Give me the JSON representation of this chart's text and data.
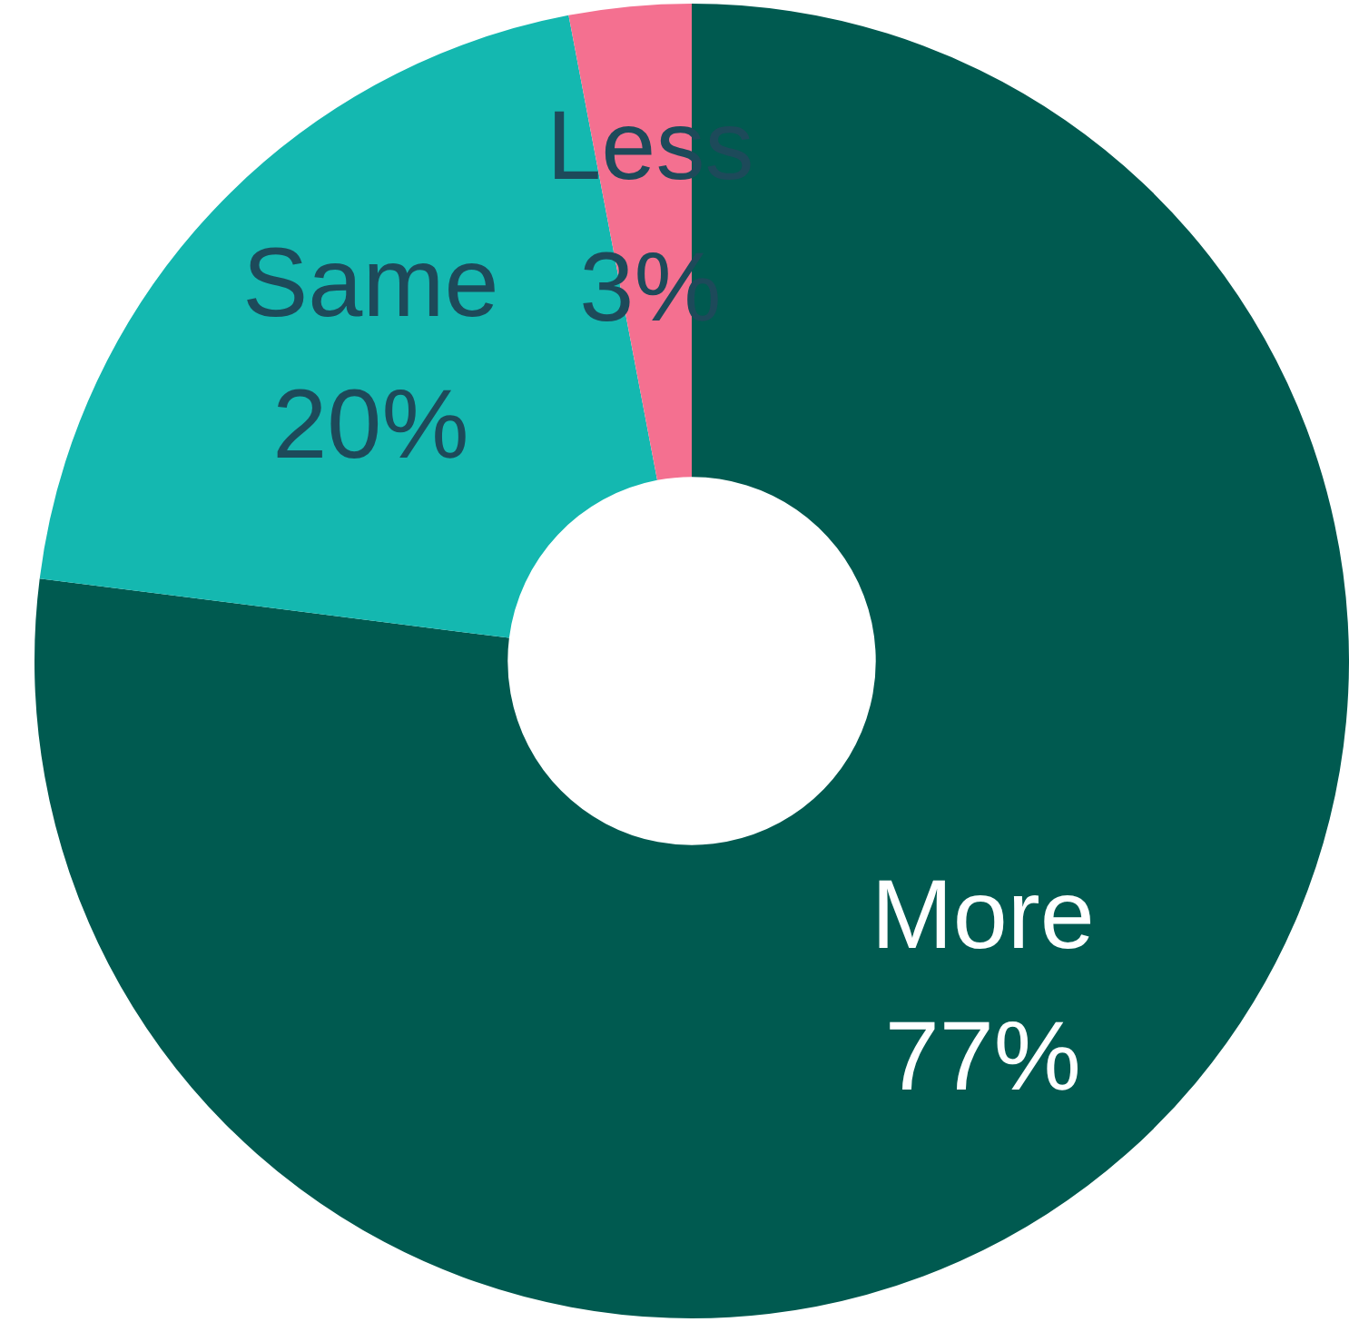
{
  "chart_data": {
    "type": "donut",
    "categories": [
      "More",
      "Same",
      "Less"
    ],
    "values": [
      77,
      20,
      3
    ],
    "colors": [
      "#005a50",
      "#14b8b0",
      "#f47090"
    ],
    "value_labels": [
      "77%",
      "20%",
      "3%"
    ]
  }
}
